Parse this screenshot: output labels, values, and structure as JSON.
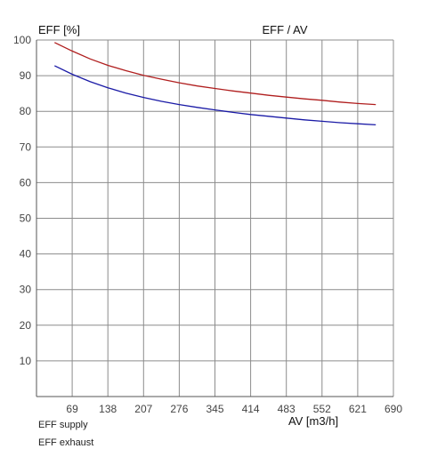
{
  "chart_data": {
    "type": "line",
    "title": "EFF / AV",
    "ylabel": "EFF [%]",
    "xlabel": "AV [m3/h]",
    "xlim": [
      0,
      690
    ],
    "ylim": [
      0,
      100
    ],
    "x_ticks": [
      69,
      138,
      207,
      276,
      345,
      414,
      483,
      552,
      621,
      690
    ],
    "y_ticks": [
      10,
      20,
      30,
      40,
      50,
      60,
      70,
      80,
      90,
      100
    ],
    "grid": true,
    "legend_placement": "bottom-left",
    "series": [
      {
        "name": "EFF supply",
        "color": "#1a1aa6",
        "x": [
          35,
          69,
          104,
          138,
          173,
          207,
          242,
          276,
          311,
          345,
          380,
          414,
          449,
          483,
          518,
          552,
          587,
          621,
          656
        ],
        "y": [
          92.8,
          90.4,
          88.3,
          86.6,
          85.1,
          83.9,
          82.8,
          81.9,
          81.1,
          80.4,
          79.7,
          79.1,
          78.6,
          78.1,
          77.6,
          77.2,
          76.8,
          76.5,
          76.2
        ]
      },
      {
        "name": "EFF exhaust",
        "color": "#b01e1e",
        "x": [
          35,
          69,
          104,
          138,
          173,
          207,
          242,
          276,
          311,
          345,
          380,
          414,
          449,
          483,
          518,
          552,
          587,
          621,
          656
        ],
        "y": [
          99.3,
          96.9,
          94.7,
          92.9,
          91.4,
          90.1,
          89.0,
          88.0,
          87.1,
          86.4,
          85.7,
          85.1,
          84.5,
          84.0,
          83.5,
          83.1,
          82.6,
          82.2,
          81.9
        ]
      }
    ]
  }
}
